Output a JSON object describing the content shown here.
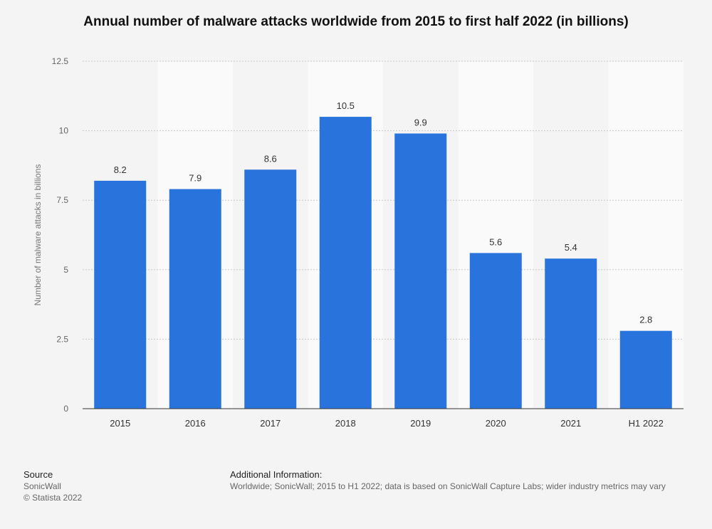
{
  "title": "Annual number of malware attacks worldwide from 2015 to first half 2022 (in billions)",
  "footer": {
    "source_heading": "Source",
    "source_name": "SonicWall",
    "copyright": "© Statista 2022",
    "info_heading": "Additional Information:",
    "info_text": "Worldwide; SonicWall; 2015 to H1 2022; data is based on SonicWall Capture Labs; wider industry metrics may vary"
  },
  "colors": {
    "bar": "#2874dc",
    "background": "#f4f4f4",
    "band": "#fafafa"
  },
  "chart_data": {
    "type": "bar",
    "title": "Annual number of malware attacks worldwide from 2015 to first half 2022 (in billions)",
    "xlabel": "",
    "ylabel": "Number of malware attacks in billions",
    "categories": [
      "2015",
      "2016",
      "2017",
      "2018",
      "2019",
      "2020",
      "2021",
      "H1 2022"
    ],
    "values": [
      8.2,
      7.9,
      8.6,
      10.5,
      9.9,
      5.6,
      5.4,
      2.8
    ],
    "value_labels": [
      "8.2",
      "7.9",
      "8.6",
      "10.5",
      "9.9",
      "5.6",
      "5.4",
      "2.8"
    ],
    "ylim": [
      0,
      12.5
    ],
    "yticks": [
      0,
      2.5,
      5,
      7.5,
      10,
      12.5
    ],
    "ytick_labels": [
      "0",
      "2.5",
      "5",
      "7.5",
      "10",
      "12.5"
    ],
    "grid": true,
    "legend": "none"
  }
}
